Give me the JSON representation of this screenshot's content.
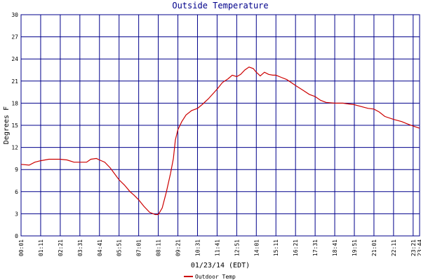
{
  "chart_data": {
    "type": "line",
    "title": "Outside Temperature",
    "xlabel": "01/23/14 (EDT)",
    "ylabel": "Degrees F",
    "ylim": [
      0,
      30
    ],
    "yticks": [
      0,
      3,
      6,
      9,
      12,
      15,
      18,
      21,
      24,
      27,
      30
    ],
    "xlim": [
      "00:01",
      "23:44"
    ],
    "xticks": [
      "00:01",
      "01:11",
      "02:21",
      "03:31",
      "04:41",
      "05:51",
      "07:01",
      "08:11",
      "09:21",
      "10:31",
      "11:41",
      "12:51",
      "14:01",
      "15:11",
      "16:21",
      "17:31",
      "18:41",
      "19:51",
      "21:01",
      "22:11",
      "23:21",
      "23:44"
    ],
    "grid": true,
    "legend_position": "bottom-center",
    "colors": {
      "grid": "#00008b",
      "line": "#cc0000",
      "title": "#00008b"
    },
    "series": [
      {
        "name": "Outdoor Temp",
        "x": [
          "00:01",
          "00:30",
          "00:50",
          "01:11",
          "01:40",
          "02:00",
          "02:21",
          "02:45",
          "03:10",
          "03:31",
          "03:55",
          "04:10",
          "04:30",
          "04:41",
          "05:00",
          "05:20",
          "05:51",
          "06:10",
          "06:30",
          "06:45",
          "07:01",
          "07:20",
          "07:40",
          "08:00",
          "08:11",
          "08:25",
          "08:40",
          "08:55",
          "09:05",
          "09:12",
          "09:21",
          "09:35",
          "09:50",
          "10:10",
          "10:31",
          "10:50",
          "11:10",
          "11:41",
          "12:00",
          "12:20",
          "12:35",
          "12:51",
          "13:05",
          "13:20",
          "13:35",
          "13:50",
          "14:01",
          "14:15",
          "14:30",
          "14:45",
          "15:00",
          "15:11",
          "15:30",
          "15:50",
          "16:21",
          "16:50",
          "17:10",
          "17:31",
          "17:50",
          "18:10",
          "18:41",
          "19:10",
          "19:30",
          "19:51",
          "20:20",
          "20:40",
          "21:01",
          "21:20",
          "21:40",
          "22:11",
          "22:40",
          "23:00",
          "23:21",
          "23:44"
        ],
        "values": [
          9.7,
          9.6,
          10.0,
          10.2,
          10.4,
          10.4,
          10.4,
          10.3,
          10.0,
          10.0,
          10.0,
          10.4,
          10.5,
          10.3,
          10.0,
          9.2,
          7.6,
          6.9,
          6.0,
          5.5,
          4.9,
          4.0,
          3.2,
          2.9,
          2.9,
          3.8,
          6.0,
          8.5,
          10.5,
          13.0,
          14.4,
          15.5,
          16.4,
          17.0,
          17.3,
          17.9,
          18.6,
          19.9,
          20.8,
          21.3,
          21.8,
          21.6,
          21.9,
          22.5,
          22.9,
          22.7,
          22.2,
          21.7,
          22.2,
          21.9,
          21.8,
          21.8,
          21.5,
          21.2,
          20.4,
          19.7,
          19.2,
          18.9,
          18.4,
          18.1,
          18.0,
          18.0,
          17.9,
          17.8,
          17.5,
          17.3,
          17.2,
          16.8,
          16.2,
          15.8,
          15.5,
          15.2,
          14.9,
          14.6
        ]
      }
    ]
  }
}
